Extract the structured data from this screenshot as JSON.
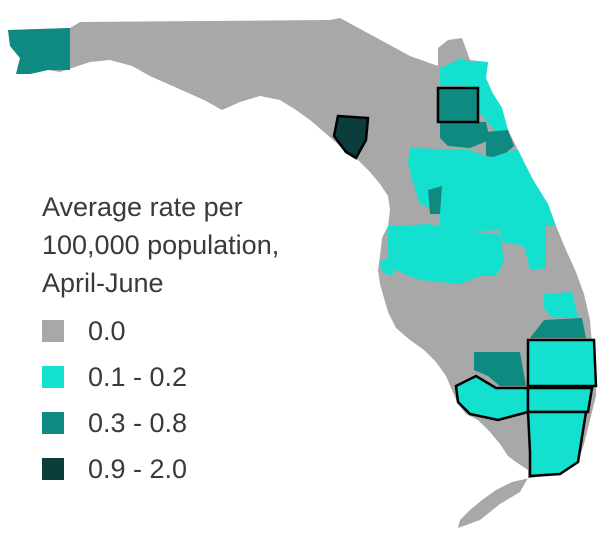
{
  "legend": {
    "title_lines": [
      "Average rate per",
      "100,000 population,",
      "April-June"
    ],
    "items": [
      {
        "label": "0.0",
        "color": "#a8a8a8"
      },
      {
        "label": "0.1 - 0.2",
        "color": "#14e0d0"
      },
      {
        "label": "0.3 - 0.8",
        "color": "#0e8a80"
      },
      {
        "label": "0.9 - 2.0",
        "color": "#0a3d3b"
      }
    ]
  },
  "colors": {
    "base": "#a8a8a8",
    "low": "#14e0d0",
    "mid": "#0e8a80",
    "high": "#0a3d3b",
    "county_outline": "#000000",
    "background": "#ffffff"
  }
}
